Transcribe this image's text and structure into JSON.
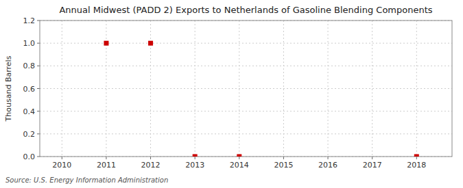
{
  "chart_data": {
    "type": "scatter",
    "title": "Annual Midwest (PADD 2) Exports to Netherlands of Gasoline Blending Components",
    "y_label": "Thousand Barrels",
    "annotations": [
      "Source: U.S. Energy Information Administration"
    ],
    "x": [
      2011,
      2012,
      2013,
      2014,
      2018
    ],
    "values": [
      1.0,
      1.0,
      0.0,
      0.0,
      0.0
    ],
    "color": "#cc0000",
    "marker": "square",
    "xlim": [
      2009.5,
      2018.8
    ],
    "ylim": [
      0.0,
      1.2
    ],
    "xticks": [
      2010,
      2011,
      2012,
      2013,
      2014,
      2015,
      2016,
      2017,
      2018
    ],
    "yticks": [
      {
        "value": 0.0,
        "label": "0.0"
      },
      0.2,
      0.4,
      0.6,
      0.8,
      {
        "value": 1.0,
        "label": "1.0"
      },
      1.2
    ],
    "grid": true
  }
}
